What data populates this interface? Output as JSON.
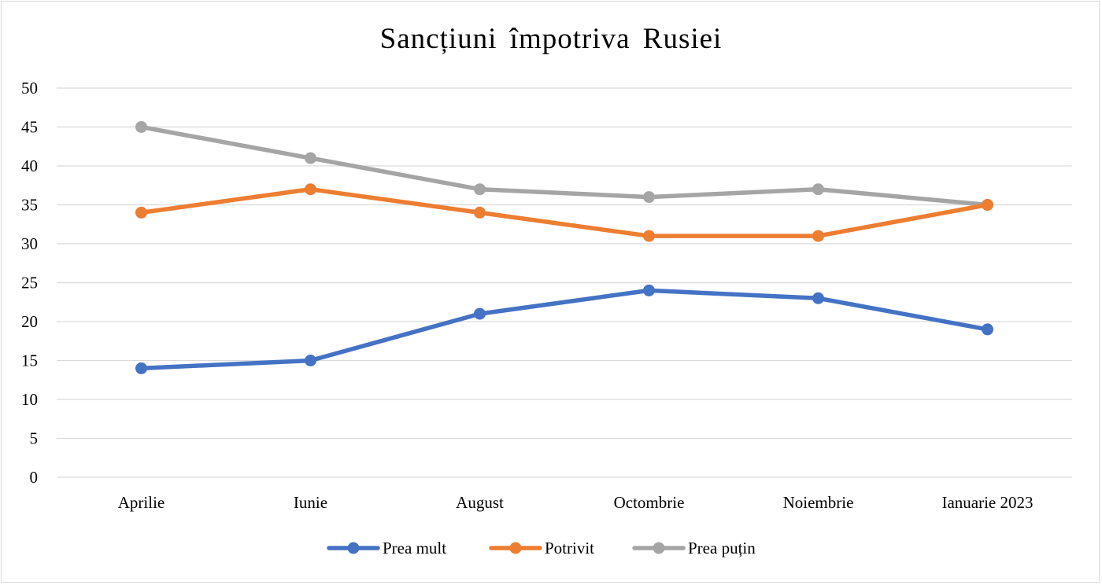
{
  "chart_data": {
    "type": "line",
    "title": "Sancțiuni împotriva Rusiei",
    "xlabel": "",
    "ylabel": "",
    "categories": [
      "Aprilie",
      "Iunie",
      "August",
      "Octombrie",
      "Noiembrie",
      "Ianuarie 2023"
    ],
    "ylim": [
      0,
      50
    ],
    "yticks": [
      0,
      5,
      10,
      15,
      20,
      25,
      30,
      35,
      40,
      45,
      50
    ],
    "grid": true,
    "legend_position": "bottom",
    "series": [
      {
        "name": "Prea mult",
        "color": "#4472c4",
        "values": [
          14,
          15,
          21,
          24,
          23,
          19
        ]
      },
      {
        "name": "Potrivit",
        "color": "#ed7d31",
        "values": [
          34,
          37,
          34,
          31,
          31,
          35
        ]
      },
      {
        "name": "Prea puțin",
        "color": "#a5a5a5",
        "values": [
          45,
          41,
          37,
          36,
          37,
          35
        ]
      }
    ]
  }
}
